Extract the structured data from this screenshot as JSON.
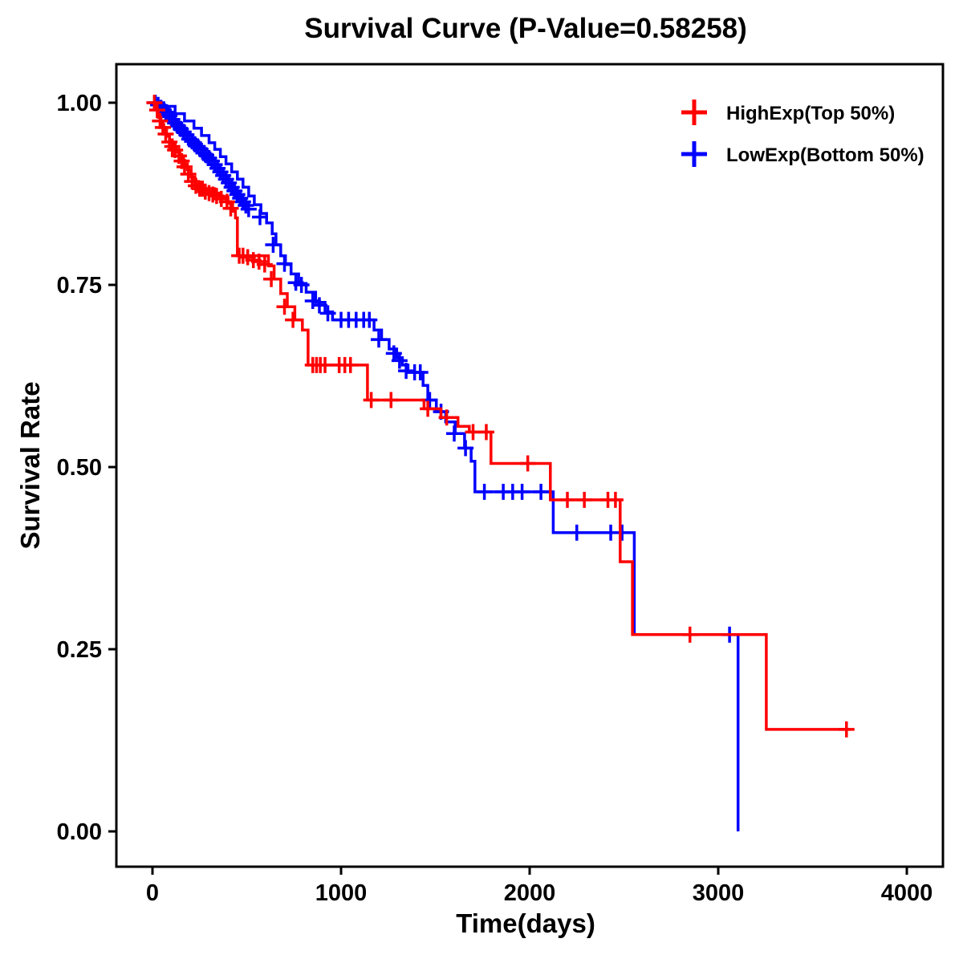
{
  "title": "Survival Curve (P-Value=0.58258)",
  "chart_data": {
    "type": "line",
    "subtype": "kaplan-meier-step",
    "title": "Survival Curve (P-Value=0.58258)",
    "p_value": "0.58258",
    "xlabel": "Time(days)",
    "ylabel": "Survival Rate",
    "xlim": [
      -190,
      4190
    ],
    "ylim": [
      -0.05,
      1.05
    ],
    "grid": false,
    "legend_position": "top-right-inside",
    "xticks": {
      "values": [
        0,
        1000,
        2000,
        3000,
        4000
      ],
      "labels": [
        "0",
        "1000",
        "2000",
        "3000",
        "4000"
      ]
    },
    "yticks": {
      "values": [
        0,
        0.25,
        0.5,
        0.75,
        1.0
      ],
      "labels": [
        "0.00",
        "0.25",
        "0.50",
        "0.75",
        "1.00"
      ]
    },
    "series": [
      {
        "name": "HighExp(Top 50%)",
        "color": "#FF0000",
        "marker": "plus",
        "step_points": [
          [
            0,
            1.0
          ],
          [
            15,
            0.99
          ],
          [
            30,
            0.98
          ],
          [
            45,
            0.97
          ],
          [
            60,
            0.962
          ],
          [
            75,
            0.954
          ],
          [
            90,
            0.946
          ],
          [
            105,
            0.94
          ],
          [
            125,
            0.932
          ],
          [
            145,
            0.924
          ],
          [
            165,
            0.916
          ],
          [
            185,
            0.908
          ],
          [
            205,
            0.898
          ],
          [
            225,
            0.888
          ],
          [
            245,
            0.882
          ],
          [
            330,
            0.876
          ],
          [
            360,
            0.871
          ],
          [
            400,
            0.862
          ],
          [
            425,
            0.851
          ],
          [
            440,
            0.842
          ],
          [
            450,
            0.79
          ],
          [
            615,
            0.776
          ],
          [
            645,
            0.758
          ],
          [
            680,
            0.738
          ],
          [
            715,
            0.72
          ],
          [
            755,
            0.702
          ],
          [
            795,
            0.688
          ],
          [
            825,
            0.64
          ],
          [
            1140,
            0.592
          ],
          [
            1440,
            0.58
          ],
          [
            1530,
            0.568
          ],
          [
            1620,
            0.556
          ],
          [
            1680,
            0.548
          ],
          [
            1795,
            0.505
          ],
          [
            2110,
            0.455
          ],
          [
            2480,
            0.37
          ],
          [
            2545,
            0.27
          ],
          [
            3255,
            0.14
          ],
          [
            3700,
            0.14
          ]
        ],
        "censor_marks": [
          [
            10,
            1.0
          ],
          [
            25,
            0.99
          ],
          [
            40,
            0.975
          ],
          [
            55,
            0.966
          ],
          [
            70,
            0.957
          ],
          [
            90,
            0.946
          ],
          [
            105,
            0.94
          ],
          [
            120,
            0.935
          ],
          [
            140,
            0.927
          ],
          [
            155,
            0.92
          ],
          [
            170,
            0.912
          ],
          [
            190,
            0.902
          ],
          [
            210,
            0.892
          ],
          [
            230,
            0.886
          ],
          [
            250,
            0.882
          ],
          [
            265,
            0.882
          ],
          [
            280,
            0.878
          ],
          [
            300,
            0.876
          ],
          [
            320,
            0.874
          ],
          [
            340,
            0.872
          ],
          [
            365,
            0.868
          ],
          [
            395,
            0.864
          ],
          [
            415,
            0.855
          ],
          [
            460,
            0.79
          ],
          [
            480,
            0.79
          ],
          [
            505,
            0.788
          ],
          [
            535,
            0.784
          ],
          [
            565,
            0.782
          ],
          [
            595,
            0.778
          ],
          [
            630,
            0.758
          ],
          [
            700,
            0.72
          ],
          [
            745,
            0.702
          ],
          [
            850,
            0.64
          ],
          [
            870,
            0.64
          ],
          [
            890,
            0.64
          ],
          [
            915,
            0.64
          ],
          [
            990,
            0.64
          ],
          [
            1020,
            0.64
          ],
          [
            1050,
            0.64
          ],
          [
            1160,
            0.592
          ],
          [
            1265,
            0.592
          ],
          [
            1460,
            0.58
          ],
          [
            1560,
            0.568
          ],
          [
            1700,
            0.548
          ],
          [
            1770,
            0.548
          ],
          [
            1990,
            0.505
          ],
          [
            2200,
            0.455
          ],
          [
            2290,
            0.455
          ],
          [
            2415,
            0.455
          ],
          [
            2455,
            0.455
          ],
          [
            2850,
            0.27
          ],
          [
            3680,
            0.14
          ]
        ]
      },
      {
        "name": "LowExp(Bottom 50%)",
        "color": "#0000FF",
        "marker": "plus",
        "step_points": [
          [
            0,
            1.0
          ],
          [
            60,
            0.995
          ],
          [
            120,
            0.985
          ],
          [
            170,
            0.975
          ],
          [
            220,
            0.965
          ],
          [
            260,
            0.955
          ],
          [
            300,
            0.945
          ],
          [
            330,
            0.936
          ],
          [
            360,
            0.926
          ],
          [
            390,
            0.916
          ],
          [
            420,
            0.905
          ],
          [
            450,
            0.895
          ],
          [
            480,
            0.884
          ],
          [
            510,
            0.872
          ],
          [
            540,
            0.86
          ],
          [
            575,
            0.848
          ],
          [
            605,
            0.835
          ],
          [
            635,
            0.82
          ],
          [
            655,
            0.805
          ],
          [
            680,
            0.79
          ],
          [
            705,
            0.778
          ],
          [
            735,
            0.765
          ],
          [
            775,
            0.752
          ],
          [
            815,
            0.74
          ],
          [
            865,
            0.726
          ],
          [
            915,
            0.713
          ],
          [
            955,
            0.702
          ],
          [
            1175,
            0.688
          ],
          [
            1215,
            0.675
          ],
          [
            1255,
            0.662
          ],
          [
            1295,
            0.65
          ],
          [
            1325,
            0.64
          ],
          [
            1355,
            0.63
          ],
          [
            1435,
            0.612
          ],
          [
            1460,
            0.592
          ],
          [
            1505,
            0.576
          ],
          [
            1555,
            0.562
          ],
          [
            1605,
            0.546
          ],
          [
            1655,
            0.526
          ],
          [
            1690,
            0.508
          ],
          [
            1710,
            0.466
          ],
          [
            2125,
            0.41
          ],
          [
            2555,
            0.27
          ],
          [
            3105,
            0.0
          ]
        ],
        "censor_marks": [
          [
            15,
            1.0
          ],
          [
            30,
            0.997
          ],
          [
            45,
            0.993
          ],
          [
            60,
            0.99
          ],
          [
            75,
            0.987
          ],
          [
            90,
            0.982
          ],
          [
            105,
            0.977
          ],
          [
            120,
            0.972
          ],
          [
            135,
            0.968
          ],
          [
            150,
            0.964
          ],
          [
            165,
            0.96
          ],
          [
            180,
            0.956
          ],
          [
            195,
            0.95
          ],
          [
            210,
            0.947
          ],
          [
            225,
            0.943
          ],
          [
            240,
            0.94
          ],
          [
            255,
            0.936
          ],
          [
            270,
            0.931
          ],
          [
            285,
            0.928
          ],
          [
            300,
            0.924
          ],
          [
            315,
            0.92
          ],
          [
            330,
            0.915
          ],
          [
            345,
            0.91
          ],
          [
            360,
            0.905
          ],
          [
            375,
            0.9
          ],
          [
            390,
            0.895
          ],
          [
            405,
            0.89
          ],
          [
            420,
            0.884
          ],
          [
            435,
            0.879
          ],
          [
            450,
            0.874
          ],
          [
            465,
            0.869
          ],
          [
            480,
            0.864
          ],
          [
            495,
            0.859
          ],
          [
            510,
            0.854
          ],
          [
            570,
            0.843
          ],
          [
            640,
            0.805
          ],
          [
            700,
            0.779
          ],
          [
            760,
            0.753
          ],
          [
            790,
            0.75
          ],
          [
            850,
            0.728
          ],
          [
            885,
            0.722
          ],
          [
            930,
            0.711
          ],
          [
            1000,
            0.702
          ],
          [
            1040,
            0.702
          ],
          [
            1080,
            0.702
          ],
          [
            1120,
            0.702
          ],
          [
            1150,
            0.702
          ],
          [
            1200,
            0.675
          ],
          [
            1280,
            0.656
          ],
          [
            1310,
            0.646
          ],
          [
            1345,
            0.632
          ],
          [
            1390,
            0.63
          ],
          [
            1420,
            0.63
          ],
          [
            1470,
            0.592
          ],
          [
            1530,
            0.576
          ],
          [
            1600,
            0.546
          ],
          [
            1660,
            0.526
          ],
          [
            1760,
            0.466
          ],
          [
            1860,
            0.466
          ],
          [
            1910,
            0.466
          ],
          [
            1960,
            0.466
          ],
          [
            2060,
            0.466
          ],
          [
            2250,
            0.41
          ],
          [
            2430,
            0.41
          ],
          [
            2490,
            0.41
          ],
          [
            3060,
            0.27
          ]
        ]
      }
    ]
  }
}
